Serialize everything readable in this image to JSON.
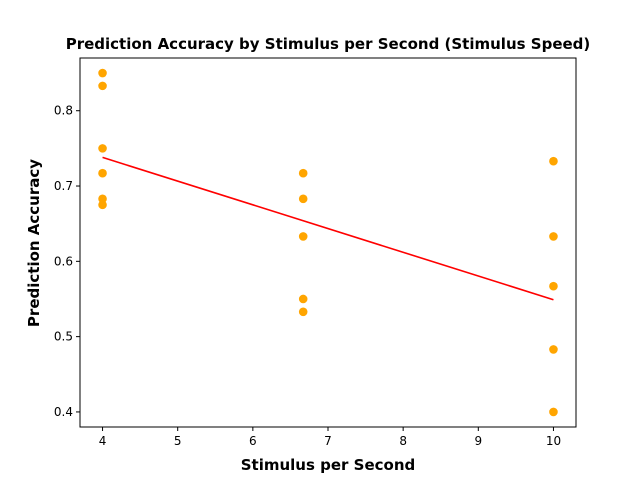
{
  "chart_data": {
    "type": "scatter",
    "title": "Prediction Accuracy by Stimulus per Second (Stimulus Speed)",
    "xlabel": "Stimulus per Second",
    "ylabel": "Prediction Accuracy",
    "xlim": [
      3.7,
      10.3
    ],
    "ylim": [
      0.38,
      0.87
    ],
    "xticks": [
      "4",
      "5",
      "6",
      "7",
      "8",
      "9",
      "10"
    ],
    "yticks": [
      "0.4",
      "0.5",
      "0.6",
      "0.7",
      "0.8"
    ],
    "grid": false,
    "point_color": "#ffa500",
    "line_color": "#ff0000",
    "points": [
      {
        "x": 4,
        "y": 0.85
      },
      {
        "x": 4,
        "y": 0.833
      },
      {
        "x": 4,
        "y": 0.75
      },
      {
        "x": 4,
        "y": 0.717
      },
      {
        "x": 4,
        "y": 0.683
      },
      {
        "x": 4,
        "y": 0.675
      },
      {
        "x": 6.67,
        "y": 0.717
      },
      {
        "x": 6.67,
        "y": 0.683
      },
      {
        "x": 6.67,
        "y": 0.633
      },
      {
        "x": 6.67,
        "y": 0.55
      },
      {
        "x": 6.67,
        "y": 0.533
      },
      {
        "x": 10,
        "y": 0.733
      },
      {
        "x": 10,
        "y": 0.633
      },
      {
        "x": 10,
        "y": 0.567
      },
      {
        "x": 10,
        "y": 0.483
      },
      {
        "x": 10,
        "y": 0.4
      }
    ],
    "trendline": [
      {
        "x": 4,
        "y": 0.738
      },
      {
        "x": 10,
        "y": 0.549
      }
    ]
  }
}
